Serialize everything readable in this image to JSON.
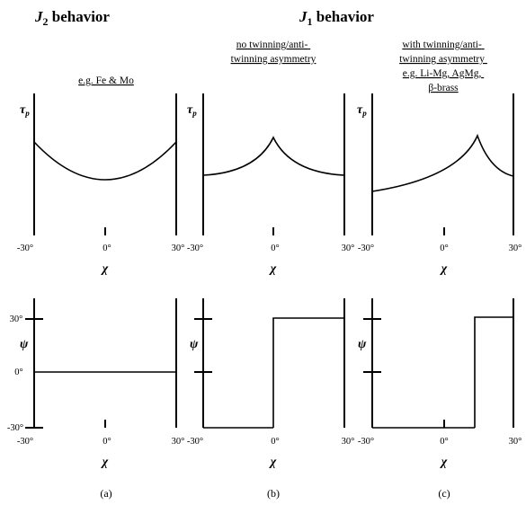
{
  "headers": {
    "j2": {
      "italic": "J",
      "sub": "2",
      "rest": " behavior"
    },
    "j1": {
      "italic": "J",
      "sub": "1",
      "rest": " behavior"
    }
  },
  "panels": [
    {
      "id": "a",
      "subtitle": [
        "e.g. Fe & Mo"
      ],
      "caption": "(a)"
    },
    {
      "id": "b",
      "subtitle": [
        "no twinning/anti-",
        "twinning asymmetry"
      ],
      "caption": "(b)"
    },
    {
      "id": "c",
      "subtitle": [
        "with twinning/anti-",
        "twinning asymmetry",
        "e.g. Li-Mg, AgMg,",
        "β-brass"
      ],
      "caption": "(c)"
    }
  ],
  "axes": {
    "tau_label": {
      "main": "τ",
      "sub": "p"
    },
    "psi_label": "ψ",
    "chi_label": "χ",
    "x_ticks": [
      "-30°",
      "0°",
      "30°"
    ],
    "psi_ticks": [
      "30°",
      "0°",
      "-30°"
    ]
  },
  "chart_data": [
    {
      "type": "line",
      "panel": "a",
      "ylabel": "τp",
      "xlabel": "χ",
      "x_range": [
        -30,
        30
      ],
      "description_points": {
        "x": [
          -30,
          -20,
          -10,
          0,
          10,
          20,
          30
        ],
        "y": [
          0.85,
          0.68,
          0.6,
          0.57,
          0.6,
          0.68,
          0.85
        ]
      }
    },
    {
      "type": "line",
      "panel": "b",
      "ylabel": "τp",
      "xlabel": "χ",
      "x_range": [
        -30,
        30
      ],
      "description_points": {
        "x": [
          -30,
          -15,
          0,
          15,
          30
        ],
        "y": [
          0.5,
          0.55,
          0.8,
          0.55,
          0.5
        ]
      }
    },
    {
      "type": "line",
      "panel": "c",
      "ylabel": "τp",
      "xlabel": "χ",
      "x_range": [
        -30,
        30
      ],
      "description_points": {
        "x": [
          -30,
          -15,
          0,
          13,
          30
        ],
        "y": [
          0.4,
          0.45,
          0.55,
          0.8,
          0.5
        ]
      }
    },
    {
      "type": "line",
      "panel": "a",
      "ylabel": "ψ",
      "xlabel": "χ",
      "x": [
        -30,
        30
      ],
      "y": [
        0,
        0
      ],
      "ylim": [
        -30,
        30
      ]
    },
    {
      "type": "line",
      "panel": "b",
      "ylabel": "ψ",
      "xlabel": "χ",
      "x": [
        0,
        0,
        30
      ],
      "y": [
        -30,
        30,
        30
      ],
      "ylim": [
        -30,
        30
      ]
    },
    {
      "type": "line",
      "panel": "c",
      "ylabel": "ψ",
      "xlabel": "χ",
      "x": [
        13,
        13,
        30
      ],
      "y": [
        -30,
        30,
        30
      ],
      "ylim": [
        -30,
        30
      ]
    }
  ]
}
